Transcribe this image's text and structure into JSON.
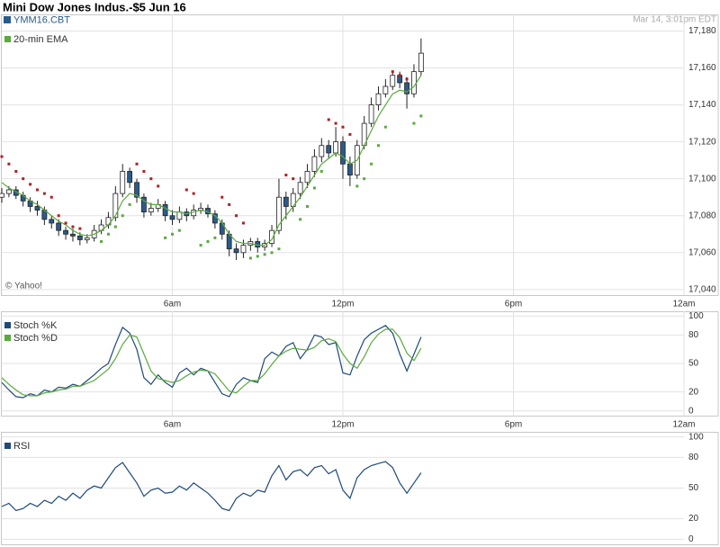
{
  "chart_data": [
    {
      "type": "candlestick",
      "title": "Mini Dow Jones Indus.-$5 Jun 16",
      "symbol": "YMM16.CBT",
      "timestamp": "Mar 14, 3:01pm EDT",
      "annotation": "© Yahoo!",
      "up_color": "#ffffff",
      "down_color": "#2b5b8c",
      "outline_color": "#222222",
      "symbol_color": "#2b5b8c",
      "x": [
        0,
        0.25,
        0.5,
        0.75,
        1,
        1.25,
        1.5,
        1.75,
        2,
        2.25,
        2.5,
        2.75,
        3,
        3.25,
        3.5,
        3.75,
        4,
        4.25,
        4.5,
        4.75,
        5,
        5.25,
        5.5,
        5.75,
        6,
        6.25,
        6.5,
        6.75,
        7,
        7.25,
        7.5,
        7.75,
        8,
        8.25,
        8.5,
        8.75,
        9,
        9.25,
        9.5,
        9.75,
        10,
        10.25,
        10.5,
        10.75,
        11,
        11.25,
        11.5,
        11.75,
        12,
        12.25,
        12.5,
        12.75,
        13,
        13.25,
        13.5,
        13.75,
        14,
        14.25,
        14.5,
        14.75
      ],
      "open": [
        17090,
        17092,
        17094,
        17091,
        17088,
        17085,
        17083,
        17078,
        17076,
        17072,
        17070,
        17069,
        17067,
        17068,
        17072,
        17075,
        17079,
        17092,
        17104,
        17098,
        17090,
        17082,
        17084,
        17086,
        17080,
        17078,
        17082,
        17080,
        17083,
        17084,
        17081,
        17076,
        17070,
        17062,
        17060,
        17064,
        17066,
        17063,
        17065,
        17072,
        17090,
        17085,
        17092,
        17098,
        17104,
        17112,
        17118,
        17114,
        17120,
        17108,
        17102,
        17118,
        17130,
        17140,
        17146,
        17150,
        17156,
        17152,
        17146,
        17158
      ],
      "high": [
        17095,
        17096,
        17096,
        17093,
        17090,
        17088,
        17085,
        17080,
        17078,
        17074,
        17073,
        17071,
        17070,
        17075,
        17078,
        17082,
        17096,
        17108,
        17106,
        17100,
        17092,
        17087,
        17089,
        17088,
        17083,
        17085,
        17084,
        17086,
        17087,
        17086,
        17083,
        17078,
        17072,
        17065,
        17067,
        17068,
        17068,
        17067,
        17075,
        17100,
        17093,
        17095,
        17101,
        17108,
        17116,
        17122,
        17121,
        17128,
        17123,
        17112,
        17121,
        17134,
        17144,
        17150,
        17154,
        17158,
        17158,
        17155,
        17162,
        17176
      ],
      "low": [
        17087,
        17090,
        17089,
        17085,
        17082,
        17080,
        17075,
        17073,
        17069,
        17067,
        17066,
        17064,
        17065,
        17066,
        17070,
        17073,
        17077,
        17090,
        17095,
        17087,
        17079,
        17080,
        17082,
        17077,
        17075,
        17076,
        17077,
        17078,
        17081,
        17079,
        17073,
        17067,
        17058,
        17056,
        17057,
        17061,
        17060,
        17061,
        17063,
        17070,
        17078,
        17082,
        17089,
        17095,
        17101,
        17109,
        17111,
        17112,
        17100,
        17096,
        17100,
        17116,
        17128,
        17137,
        17144,
        17148,
        17149,
        17138,
        17144,
        17156
      ],
      "close": [
        17092,
        17094,
        17091,
        17088,
        17085,
        17083,
        17078,
        17076,
        17072,
        17070,
        17069,
        17067,
        17068,
        17072,
        17075,
        17079,
        17092,
        17104,
        17098,
        17090,
        17082,
        17084,
        17086,
        17080,
        17078,
        17082,
        17080,
        17083,
        17084,
        17081,
        17076,
        17070,
        17062,
        17060,
        17064,
        17066,
        17063,
        17065,
        17072,
        17090,
        17085,
        17092,
        17098,
        17104,
        17112,
        17118,
        17114,
        17120,
        17108,
        17102,
        17118,
        17130,
        17140,
        17146,
        17150,
        17156,
        17152,
        17146,
        17158,
        17168
      ],
      "series": [
        {
          "name": "20-min EMA",
          "color": "#5aaa3c",
          "values": [
            17098,
            17095,
            17093,
            17091,
            17088,
            17086,
            17083,
            17080,
            17077,
            17075,
            17072,
            17070,
            17069,
            17070,
            17072,
            17075,
            17080,
            17088,
            17092,
            17091,
            17088,
            17086,
            17086,
            17084,
            17082,
            17082,
            17081,
            17082,
            17083,
            17082,
            17080,
            17076,
            17070,
            17066,
            17065,
            17065,
            17064,
            17064,
            17067,
            17075,
            17080,
            17085,
            17090,
            17096,
            17102,
            17108,
            17111,
            17114,
            17112,
            17108,
            17110,
            17118,
            17126,
            17134,
            17140,
            17146,
            17148,
            17147,
            17150,
            17156
          ]
        }
      ],
      "markers": [
        {
          "color": "#b01e23",
          "values": [
            17112,
            17108,
            17104,
            17100,
            17097,
            17094,
            17092,
            17090,
            17080,
            17076,
            17074,
            17073,
            null,
            null,
            null,
            null,
            null,
            null,
            null,
            17108,
            17104,
            17100,
            17096,
            null,
            null,
            null,
            17094,
            17092,
            null,
            null,
            null,
            17090,
            17086,
            17080,
            17076,
            null,
            null,
            null,
            null,
            null,
            17102,
            17100,
            null,
            null,
            null,
            null,
            17132,
            17130,
            17128,
            17124,
            null,
            null,
            null,
            null,
            null,
            17158,
            17156,
            17154,
            null,
            null
          ]
        },
        {
          "color": "#5aaa3c",
          "values": [
            null,
            null,
            null,
            null,
            null,
            null,
            null,
            null,
            null,
            null,
            null,
            null,
            null,
            null,
            17066,
            17070,
            17074,
            17080,
            17086,
            null,
            null,
            null,
            null,
            17068,
            17070,
            17072,
            null,
            null,
            17064,
            17066,
            17068,
            null,
            null,
            null,
            null,
            17057,
            17058,
            17059,
            17060,
            17062,
            null,
            null,
            17078,
            17085,
            17095,
            17104,
            null,
            null,
            null,
            null,
            17096,
            17100,
            17108,
            17118,
            17128,
            null,
            null,
            null,
            17130,
            17134
          ]
        }
      ],
      "xlim": [
        0,
        24
      ],
      "xticks": [
        {
          "value": 6,
          "label": "6am"
        },
        {
          "value": 12,
          "label": "12pm"
        },
        {
          "value": 18,
          "label": "6pm"
        },
        {
          "value": 24,
          "label": "12am"
        }
      ],
      "ylim": [
        17037,
        17189
      ],
      "yticks": [
        {
          "value": 17040,
          "label": "17,040"
        },
        {
          "value": 17060,
          "label": "17,060"
        },
        {
          "value": 17080,
          "label": "17,080"
        },
        {
          "value": 17100,
          "label": "17,100"
        },
        {
          "value": 17120,
          "label": "17,120"
        },
        {
          "value": 17140,
          "label": "17,140"
        },
        {
          "value": 17160,
          "label": "17,160"
        },
        {
          "value": 17180,
          "label": "17,180"
        }
      ],
      "grid": true
    },
    {
      "type": "line",
      "x": [
        0,
        0.25,
        0.5,
        0.75,
        1,
        1.25,
        1.5,
        1.75,
        2,
        2.25,
        2.5,
        2.75,
        3,
        3.25,
        3.5,
        3.75,
        4,
        4.25,
        4.5,
        4.75,
        5,
        5.25,
        5.5,
        5.75,
        6,
        6.25,
        6.5,
        6.75,
        7,
        7.25,
        7.5,
        7.75,
        8,
        8.25,
        8.5,
        8.75,
        9,
        9.25,
        9.5,
        9.75,
        10,
        10.25,
        10.5,
        10.75,
        11,
        11.25,
        11.5,
        11.75,
        12,
        12.25,
        12.5,
        12.75,
        13,
        13.25,
        13.5,
        13.75,
        14,
        14.25,
        14.5,
        14.75
      ],
      "series": [
        {
          "name": "Stoch %K",
          "color": "#1f4a7a",
          "values": [
            30,
            22,
            15,
            14,
            18,
            16,
            22,
            20,
            25,
            24,
            28,
            26,
            32,
            38,
            45,
            50,
            70,
            88,
            82,
            65,
            35,
            28,
            38,
            30,
            25,
            40,
            45,
            38,
            45,
            42,
            30,
            18,
            15,
            28,
            35,
            32,
            30,
            55,
            62,
            58,
            68,
            72,
            55,
            65,
            80,
            78,
            70,
            72,
            40,
            38,
            58,
            75,
            82,
            86,
            90,
            82,
            60,
            42,
            60,
            78
          ]
        },
        {
          "name": "Stoch %D",
          "color": "#5aaa3c",
          "values": [
            35,
            28,
            22,
            17,
            16,
            16,
            19,
            20,
            22,
            23,
            26,
            26,
            29,
            32,
            38,
            44,
            55,
            70,
            80,
            78,
            60,
            42,
            34,
            32,
            30,
            32,
            37,
            41,
            43,
            42,
            39,
            30,
            21,
            19,
            26,
            32,
            32,
            39,
            49,
            58,
            63,
            66,
            65,
            64,
            67,
            74,
            76,
            73,
            60,
            50,
            45,
            57,
            72,
            81,
            86,
            86,
            77,
            61,
            53,
            66
          ]
        }
      ],
      "xlim": [
        0,
        24
      ],
      "xticks": [
        {
          "value": 6,
          "label": "6am"
        },
        {
          "value": 12,
          "label": "12pm"
        },
        {
          "value": 18,
          "label": "6pm"
        },
        {
          "value": 24,
          "label": "12am"
        }
      ],
      "ylim": [
        -5,
        105
      ],
      "yticks": [
        0,
        20,
        50,
        80,
        100
      ],
      "grid": true
    },
    {
      "type": "line",
      "x": [
        0,
        0.25,
        0.5,
        0.75,
        1,
        1.25,
        1.5,
        1.75,
        2,
        2.25,
        2.5,
        2.75,
        3,
        3.25,
        3.5,
        3.75,
        4,
        4.25,
        4.5,
        4.75,
        5,
        5.25,
        5.5,
        5.75,
        6,
        6.25,
        6.5,
        6.75,
        7,
        7.25,
        7.5,
        7.75,
        8,
        8.25,
        8.5,
        8.75,
        9,
        9.25,
        9.5,
        9.75,
        10,
        10.25,
        10.5,
        10.75,
        11,
        11.25,
        11.5,
        11.75,
        12,
        12.25,
        12.5,
        12.75,
        13,
        13.25,
        13.5,
        13.75,
        14,
        14.25,
        14.5,
        14.75
      ],
      "series": [
        {
          "name": "RSI",
          "color": "#1f4a7a",
          "values": [
            32,
            35,
            28,
            30,
            35,
            32,
            38,
            35,
            42,
            38,
            45,
            40,
            48,
            52,
            50,
            60,
            70,
            75,
            65,
            55,
            42,
            48,
            50,
            45,
            46,
            52,
            48,
            55,
            50,
            45,
            38,
            30,
            28,
            40,
            45,
            42,
            48,
            46,
            62,
            72,
            58,
            66,
            68,
            62,
            70,
            72,
            64,
            68,
            48,
            40,
            60,
            68,
            72,
            74,
            76,
            70,
            55,
            45,
            55,
            65
          ]
        }
      ],
      "xlim": [
        0,
        24
      ],
      "ylim": [
        -5,
        105
      ],
      "yticks": [
        0,
        20,
        50,
        80,
        100
      ],
      "grid": true
    }
  ]
}
